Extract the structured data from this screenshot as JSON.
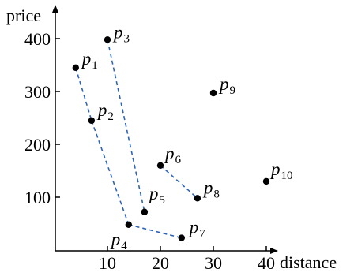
{
  "chart_data": {
    "type": "scatter",
    "xlabel": "distance",
    "ylabel": "price",
    "xticks": [
      10,
      20,
      30,
      40
    ],
    "yticks": [
      100,
      200,
      300,
      400
    ],
    "xlim": [
      0,
      44
    ],
    "ylim": [
      0,
      450
    ],
    "points": [
      {
        "id": "p1",
        "letter": "p",
        "sub": "1",
        "x": 4,
        "y": 345
      },
      {
        "id": "p2",
        "letter": "p",
        "sub": "2",
        "x": 7,
        "y": 245
      },
      {
        "id": "p3",
        "letter": "p",
        "sub": "3",
        "x": 10,
        "y": 398
      },
      {
        "id": "p4",
        "letter": "p",
        "sub": "4",
        "x": 14,
        "y": 48
      },
      {
        "id": "p5",
        "letter": "p",
        "sub": "5",
        "x": 17,
        "y": 72
      },
      {
        "id": "p6",
        "letter": "p",
        "sub": "6",
        "x": 20,
        "y": 160
      },
      {
        "id": "p7",
        "letter": "p",
        "sub": "7",
        "x": 24,
        "y": 23
      },
      {
        "id": "p8",
        "letter": "p",
        "sub": "8",
        "x": 27,
        "y": 98
      },
      {
        "id": "p9",
        "letter": "p",
        "sub": "9",
        "x": 30,
        "y": 297
      },
      {
        "id": "p10",
        "letter": "p",
        "sub": "10",
        "x": 40,
        "y": 130
      }
    ],
    "skyline_edges": [
      [
        "p1",
        "p2"
      ],
      [
        "p2",
        "p4"
      ],
      [
        "p4",
        "p7"
      ],
      [
        "p3",
        "p5"
      ],
      [
        "p6",
        "p8"
      ]
    ],
    "colors": {
      "edge": "#2e64b8",
      "point": "#000000",
      "axis": "#000000"
    }
  }
}
